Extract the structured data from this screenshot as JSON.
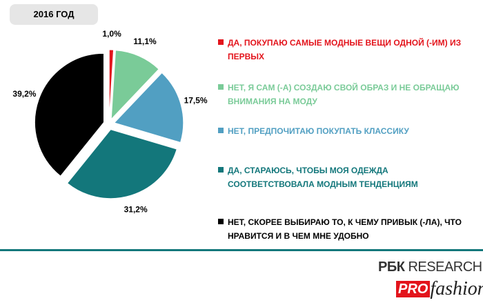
{
  "chart_data": {
    "type": "pie",
    "title": "2016 ГОД",
    "categories": [
      "ДА, ПОКУПАЮ САМЫЕ МОДНЫЕ ВЕЩИ ОДНОЙ (-ИМ) ИЗ ПЕРВЫХ",
      "НЕТ, Я САМ (-А) СОЗДАЮ СВОЙ ОБРАЗ И НЕ ОБРАЩАЮ ВНИМАНИЯ НА МОДУ",
      "НЕТ, ПРЕДПОЧИТАЮ ПОКУПАТЬ КЛАССИКУ",
      "ДА, СТАРАЮСЬ, ЧТОБЫ МОЯ ОДЕЖДА СООТВЕТСТВОВАЛА МОДНЫМ ТЕНДЕНЦИЯМ",
      "НЕТ, СКОРЕЕ ВЫБИРАЮ ТО, К ЧЕМУ ПРИВЫК (-ЛА), ЧТО НРАВИТСЯ И В ЧЕМ МНЕ УДОБНО"
    ],
    "values": [
      1.0,
      11.1,
      17.5,
      31.2,
      39.2
    ],
    "value_labels": [
      "1,0%",
      "11,1%",
      "17,5%",
      "31,2%",
      "39,2%"
    ],
    "colors": [
      "#e3141c",
      "#7acb98",
      "#519fc2",
      "#13777b",
      "#000000"
    ]
  },
  "logo": {
    "brand": "РБК",
    "research": "RESEARCH",
    "pro": "PRO",
    "fashion": "fashion"
  }
}
